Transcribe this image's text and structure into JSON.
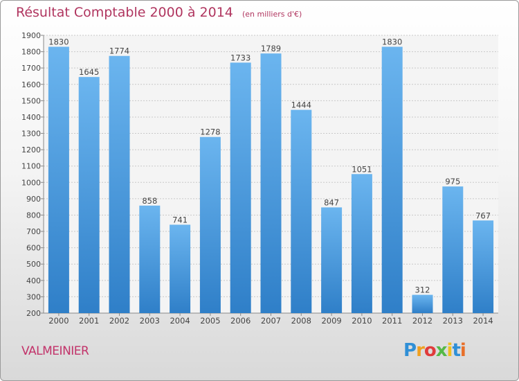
{
  "title": "Résultat Comptable 2000 à 2014",
  "subtitle": "(en milliers d'€)",
  "town": "VALMEINIER",
  "brand": "Proxiti",
  "colors": {
    "bar": "#2f7fc8",
    "bar_light": "#6bb5ef",
    "title": "#b0355f",
    "grid": "#c8c8c8"
  },
  "chart_data": {
    "type": "bar",
    "title": "Résultat Comptable 2000 à 2014",
    "xlabel": "",
    "ylabel": "",
    "ylim": [
      200,
      1900
    ],
    "yticks": [
      200,
      300,
      400,
      500,
      600,
      700,
      800,
      900,
      1000,
      1100,
      1200,
      1300,
      1400,
      1500,
      1600,
      1700,
      1800,
      1900
    ],
    "grid": true,
    "categories": [
      "2000",
      "2001",
      "2002",
      "2003",
      "2004",
      "2005",
      "2006",
      "2007",
      "2008",
      "2009",
      "2010",
      "2011",
      "2012",
      "2013",
      "2014"
    ],
    "values": [
      1830,
      1645,
      1774,
      858,
      741,
      1278,
      1733,
      1789,
      1444,
      847,
      1051,
      1830,
      312,
      975,
      767
    ]
  }
}
